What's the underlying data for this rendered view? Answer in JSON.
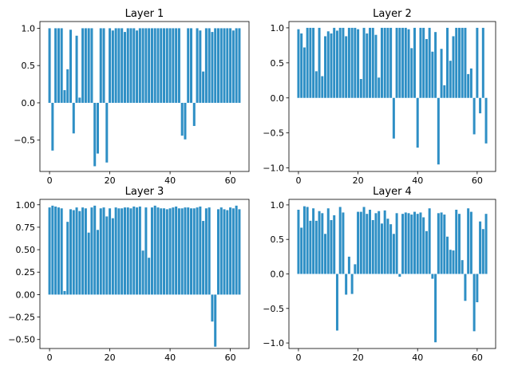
{
  "chart_data": [
    {
      "type": "bar",
      "title": "Layer 1",
      "xlabel": "",
      "ylabel": "",
      "color": "#2e8fc5",
      "xlim": [
        -3.2,
        66.2
      ],
      "ylim": [
        -0.92,
        1.09
      ],
      "xticks": [
        0,
        20,
        40,
        60
      ],
      "xtick_labels": [
        "0",
        "20",
        "40",
        "60"
      ],
      "yticks": [
        -0.5,
        0,
        0.5,
        1
      ],
      "ytick_labels": [
        "−0.5",
        "0.0",
        "0.5",
        "1.0"
      ],
      "x": [
        0,
        1,
        2,
        3,
        4,
        5,
        6,
        7,
        8,
        9,
        10,
        11,
        12,
        13,
        14,
        15,
        16,
        17,
        18,
        19,
        20,
        21,
        22,
        23,
        24,
        25,
        26,
        27,
        28,
        29,
        30,
        31,
        32,
        33,
        34,
        35,
        36,
        37,
        38,
        39,
        40,
        41,
        42,
        43,
        44,
        45,
        46,
        47,
        48,
        49,
        50,
        51,
        52,
        53,
        54,
        55,
        56,
        57,
        58,
        59,
        60,
        61,
        62,
        63
      ],
      "values": [
        1.0,
        -0.64,
        1.0,
        1.0,
        1.0,
        0.17,
        0.45,
        0.98,
        -0.41,
        0.9,
        0.07,
        1.0,
        1.0,
        1.0,
        1.0,
        -0.85,
        -0.68,
        1.0,
        1.0,
        -0.8,
        1.0,
        0.97,
        1.0,
        1.0,
        1.0,
        0.95,
        1.0,
        1.0,
        1.0,
        0.97,
        1.0,
        1.0,
        1.0,
        1.0,
        1.0,
        1.0,
        1.0,
        1.0,
        1.0,
        1.0,
        1.0,
        1.0,
        1.0,
        1.0,
        -0.44,
        -0.49,
        1.0,
        1.0,
        -0.31,
        1.0,
        0.97,
        0.42,
        1.0,
        1.0,
        0.95,
        1.0,
        1.0,
        1.0,
        1.0,
        1.0,
        1.0,
        0.97,
        1.0,
        1.0
      ]
    },
    {
      "type": "bar",
      "title": "Layer 2",
      "xlabel": "",
      "ylabel": "",
      "color": "#2e8fc5",
      "xlim": [
        -3.2,
        66.2
      ],
      "ylim": [
        -1.05,
        1.09
      ],
      "xticks": [
        0,
        20,
        40,
        60
      ],
      "xtick_labels": [
        "0",
        "20",
        "40",
        "60"
      ],
      "yticks": [
        -1,
        -0.5,
        0,
        0.5,
        1
      ],
      "ytick_labels": [
        "−1.0",
        "−0.5",
        "0.0",
        "0.5",
        "1.0"
      ],
      "x": [
        0,
        1,
        2,
        3,
        4,
        5,
        6,
        7,
        8,
        9,
        10,
        11,
        12,
        13,
        14,
        15,
        16,
        17,
        18,
        19,
        20,
        21,
        22,
        23,
        24,
        25,
        26,
        27,
        28,
        29,
        30,
        31,
        32,
        33,
        34,
        35,
        36,
        37,
        38,
        39,
        40,
        41,
        42,
        43,
        44,
        45,
        46,
        47,
        48,
        49,
        50,
        51,
        52,
        53,
        54,
        55,
        56,
        57,
        58,
        59,
        60,
        61,
        62,
        63
      ],
      "values": [
        0.98,
        0.92,
        0.72,
        1.0,
        1.0,
        1.0,
        0.38,
        1.0,
        0.31,
        0.88,
        0.95,
        0.92,
        1.0,
        0.96,
        1.0,
        1.0,
        0.88,
        1.0,
        1.0,
        1.0,
        0.98,
        0.27,
        1.0,
        0.92,
        1.0,
        1.0,
        0.9,
        0.29,
        1.0,
        1.0,
        1.0,
        1.0,
        -0.58,
        1.0,
        1.0,
        1.0,
        1.0,
        0.98,
        0.71,
        1.0,
        -0.71,
        1.0,
        1.0,
        0.84,
        1.0,
        0.66,
        0.94,
        -0.95,
        0.7,
        0.18,
        1.0,
        0.53,
        0.88,
        1.0,
        1.0,
        1.0,
        1.0,
        0.34,
        0.42,
        -0.52,
        1.0,
        -0.22,
        1.0,
        -0.65
      ]
    },
    {
      "type": "bar",
      "title": "Layer 3",
      "xlabel": "",
      "ylabel": "",
      "color": "#2e8fc5",
      "xlim": [
        -3.2,
        66.2
      ],
      "ylim": [
        -0.6,
        1.06
      ],
      "xticks": [
        0,
        20,
        40,
        60
      ],
      "xtick_labels": [
        "0",
        "20",
        "40",
        "60"
      ],
      "yticks": [
        -0.5,
        -0.25,
        0,
        0.25,
        0.5,
        0.75,
        1
      ],
      "ytick_labels": [
        "−0.50",
        "−0.25",
        "0.00",
        "0.25",
        "0.50",
        "0.75",
        "1.00"
      ],
      "x": [
        0,
        1,
        2,
        3,
        4,
        5,
        6,
        7,
        8,
        9,
        10,
        11,
        12,
        13,
        14,
        15,
        16,
        17,
        18,
        19,
        20,
        21,
        22,
        23,
        24,
        25,
        26,
        27,
        28,
        29,
        30,
        31,
        32,
        33,
        34,
        35,
        36,
        37,
        38,
        39,
        40,
        41,
        42,
        43,
        44,
        45,
        46,
        47,
        48,
        49,
        50,
        51,
        52,
        53,
        54,
        55,
        56,
        57,
        58,
        59,
        60,
        61,
        62,
        63
      ],
      "values": [
        0.97,
        0.99,
        0.98,
        0.97,
        0.96,
        0.04,
        0.81,
        0.95,
        0.94,
        0.97,
        0.93,
        0.97,
        0.96,
        0.69,
        0.97,
        0.99,
        0.72,
        0.96,
        0.97,
        0.87,
        0.96,
        0.85,
        0.97,
        0.96,
        0.96,
        0.97,
        0.97,
        0.96,
        0.98,
        0.97,
        0.98,
        0.49,
        0.97,
        0.41,
        0.97,
        0.99,
        0.97,
        0.96,
        0.96,
        0.95,
        0.96,
        0.97,
        0.98,
        0.96,
        0.96,
        0.97,
        0.97,
        0.96,
        0.96,
        0.97,
        0.98,
        0.82,
        0.96,
        0.97,
        -0.3,
        -0.58,
        0.95,
        0.97,
        0.95,
        0.94,
        0.97,
        0.96,
        0.99,
        0.95
      ]
    },
    {
      "type": "bar",
      "title": "Layer 4",
      "xlabel": "",
      "ylabel": "",
      "color": "#2e8fc5",
      "xlim": [
        -3.2,
        66.2
      ],
      "ylim": [
        -1.08,
        1.08
      ],
      "xticks": [
        0,
        20,
        40,
        60
      ],
      "xtick_labels": [
        "0",
        "20",
        "40",
        "60"
      ],
      "yticks": [
        -1,
        -0.5,
        0,
        0.5,
        1
      ],
      "ytick_labels": [
        "−1.0",
        "−0.5",
        "0.0",
        "0.5",
        "1.0"
      ],
      "x": [
        0,
        1,
        2,
        3,
        4,
        5,
        6,
        7,
        8,
        9,
        10,
        11,
        12,
        13,
        14,
        15,
        16,
        17,
        18,
        19,
        20,
        21,
        22,
        23,
        24,
        25,
        26,
        27,
        28,
        29,
        30,
        31,
        32,
        33,
        34,
        35,
        36,
        37,
        38,
        39,
        40,
        41,
        42,
        43,
        44,
        45,
        46,
        47,
        48,
        49,
        50,
        51,
        52,
        53,
        54,
        55,
        56,
        57,
        58,
        59,
        60,
        61,
        62,
        63
      ],
      "values": [
        0.93,
        0.67,
        0.98,
        0.97,
        0.77,
        0.95,
        0.77,
        0.91,
        0.88,
        0.58,
        0.95,
        0.78,
        0.85,
        -0.82,
        0.97,
        0.89,
        -0.3,
        0.25,
        -0.29,
        0.14,
        0.9,
        0.9,
        0.97,
        0.87,
        0.93,
        0.78,
        0.88,
        0.91,
        0.73,
        0.92,
        0.8,
        0.72,
        0.58,
        0.88,
        -0.04,
        0.87,
        0.89,
        0.88,
        0.86,
        0.9,
        0.87,
        0.89,
        0.82,
        0.62,
        0.95,
        -0.07,
        -0.99,
        0.88,
        0.89,
        0.86,
        0.54,
        0.35,
        0.34,
        0.93,
        0.87,
        0.2,
        -0.39,
        0.95,
        0.9,
        -0.83,
        -0.41,
        0.76,
        0.65,
        0.87
      ]
    }
  ]
}
